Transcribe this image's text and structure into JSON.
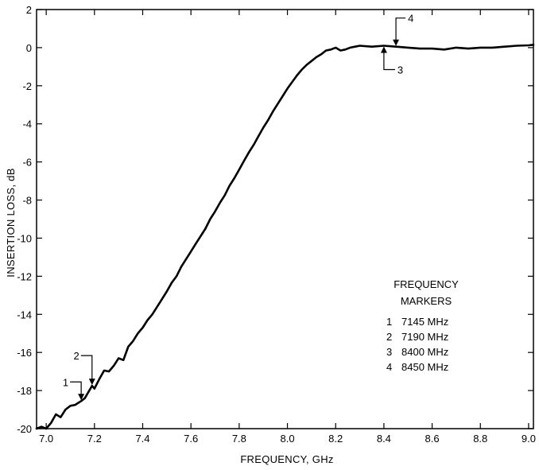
{
  "chart_data": {
    "type": "line",
    "xlabel": "FREQUENCY, GHz",
    "ylabel": "INSERTION LOSS, dB",
    "xlim": [
      6.96,
      9.02
    ],
    "ylim": [
      -20,
      2
    ],
    "x_ticks": [
      7.0,
      7.2,
      7.4,
      7.6,
      7.8,
      8.0,
      8.2,
      8.4,
      8.6,
      8.8,
      9.0
    ],
    "x_tick_labels": [
      "7.0",
      "7.2",
      "7.4",
      "7.6",
      "7.8",
      "8.0",
      "8.2",
      "8.4",
      "8.6",
      "8.8",
      "9.0"
    ],
    "y_ticks": [
      2,
      0,
      -2,
      -4,
      -6,
      -8,
      -10,
      -12,
      -14,
      -16,
      -18,
      -20
    ],
    "y_tick_labels": [
      "2",
      "0",
      "-2",
      "-4",
      "-6",
      "-8",
      "-10",
      "-12",
      "-14",
      "-16",
      "-18",
      "-20"
    ],
    "grid": false,
    "series": [
      {
        "x": [
          6.96,
          6.98,
          7.0,
          7.02,
          7.04,
          7.06,
          7.08,
          7.1,
          7.12,
          7.145,
          7.16,
          7.19,
          7.2,
          7.22,
          7.24,
          7.26,
          7.28,
          7.3,
          7.32,
          7.34,
          7.36,
          7.38,
          7.4,
          7.42,
          7.44,
          7.46,
          7.48,
          7.5,
          7.52,
          7.54,
          7.56,
          7.58,
          7.6,
          7.62,
          7.64,
          7.66,
          7.68,
          7.7,
          7.72,
          7.74,
          7.76,
          7.78,
          7.8,
          7.82,
          7.84,
          7.86,
          7.88,
          7.9,
          7.92,
          7.94,
          7.96,
          7.98,
          8.0,
          8.02,
          8.04,
          8.06,
          8.08,
          8.1,
          8.12,
          8.14,
          8.16,
          8.18,
          8.2,
          8.22,
          8.24,
          8.26,
          8.28,
          8.3,
          8.35,
          8.4,
          8.45,
          8.5,
          8.55,
          8.6,
          8.65,
          8.7,
          8.75,
          8.8,
          8.85,
          8.9,
          8.95,
          9.0,
          9.02
        ],
        "y": [
          -20.0,
          -19.9,
          -20.0,
          -19.7,
          -19.25,
          -19.4,
          -19.0,
          -18.8,
          -18.75,
          -18.55,
          -18.4,
          -17.75,
          -17.9,
          -17.4,
          -16.95,
          -17.0,
          -16.7,
          -16.3,
          -16.4,
          -15.7,
          -15.4,
          -15.0,
          -14.7,
          -14.3,
          -14.0,
          -13.6,
          -13.2,
          -12.8,
          -12.35,
          -12.0,
          -11.5,
          -11.1,
          -10.7,
          -10.3,
          -9.9,
          -9.5,
          -9.0,
          -8.6,
          -8.15,
          -7.75,
          -7.25,
          -6.85,
          -6.4,
          -5.95,
          -5.5,
          -5.1,
          -4.65,
          -4.2,
          -3.8,
          -3.35,
          -2.95,
          -2.55,
          -2.15,
          -1.8,
          -1.45,
          -1.15,
          -0.9,
          -0.7,
          -0.5,
          -0.35,
          -0.15,
          -0.1,
          0.0,
          -0.15,
          -0.1,
          0.0,
          0.05,
          0.1,
          0.05,
          0.1,
          0.05,
          0.0,
          -0.05,
          -0.05,
          -0.1,
          0.0,
          -0.05,
          0.0,
          0.0,
          0.05,
          0.1,
          0.12,
          0.15
        ]
      }
    ],
    "markers": [
      {
        "id": "1",
        "x": 7.145,
        "y": -18.55
      },
      {
        "id": "2",
        "x": 7.19,
        "y": -17.75
      },
      {
        "id": "3",
        "x": 8.4,
        "y": 0.1
      },
      {
        "id": "4",
        "x": 8.45,
        "y": 0.05
      }
    ],
    "legend": {
      "title_line1": "FREQUENCY",
      "title_line2": "MARKERS",
      "items": [
        {
          "num": "1",
          "label": "7145 MHz"
        },
        {
          "num": "2",
          "label": "7190 MHz"
        },
        {
          "num": "3",
          "label": "8400 MHz"
        },
        {
          "num": "4",
          "label": "8450 MHz"
        }
      ]
    }
  }
}
